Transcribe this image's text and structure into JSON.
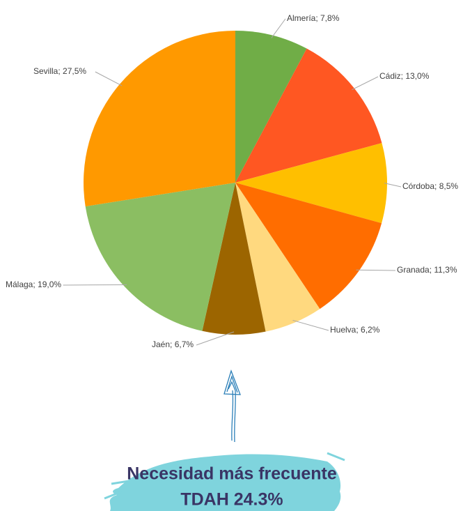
{
  "chart_data": {
    "type": "pie",
    "labels": [
      "Almería; 7,8%",
      "Cádiz; 13,0%",
      "Córdoba; 8,5%",
      "Granada; 11,3%",
      "Huelva; 6,2%",
      "Jaén; 6,7%",
      "Málaga; 19,0%",
      "Sevilla; 27,5%"
    ],
    "values": [
      7.8,
      13.0,
      8.5,
      11.3,
      6.2,
      6.7,
      19.0,
      27.5
    ],
    "colors": [
      "#70ad47",
      "#ff5722",
      "#ffbf00",
      "#ff6d00",
      "#ffd97f",
      "#9c6500",
      "#8bbe62",
      "#ff9900"
    ],
    "annotation": [
      "Necesidad más frecuente",
      "TDAH 24.3%"
    ]
  }
}
